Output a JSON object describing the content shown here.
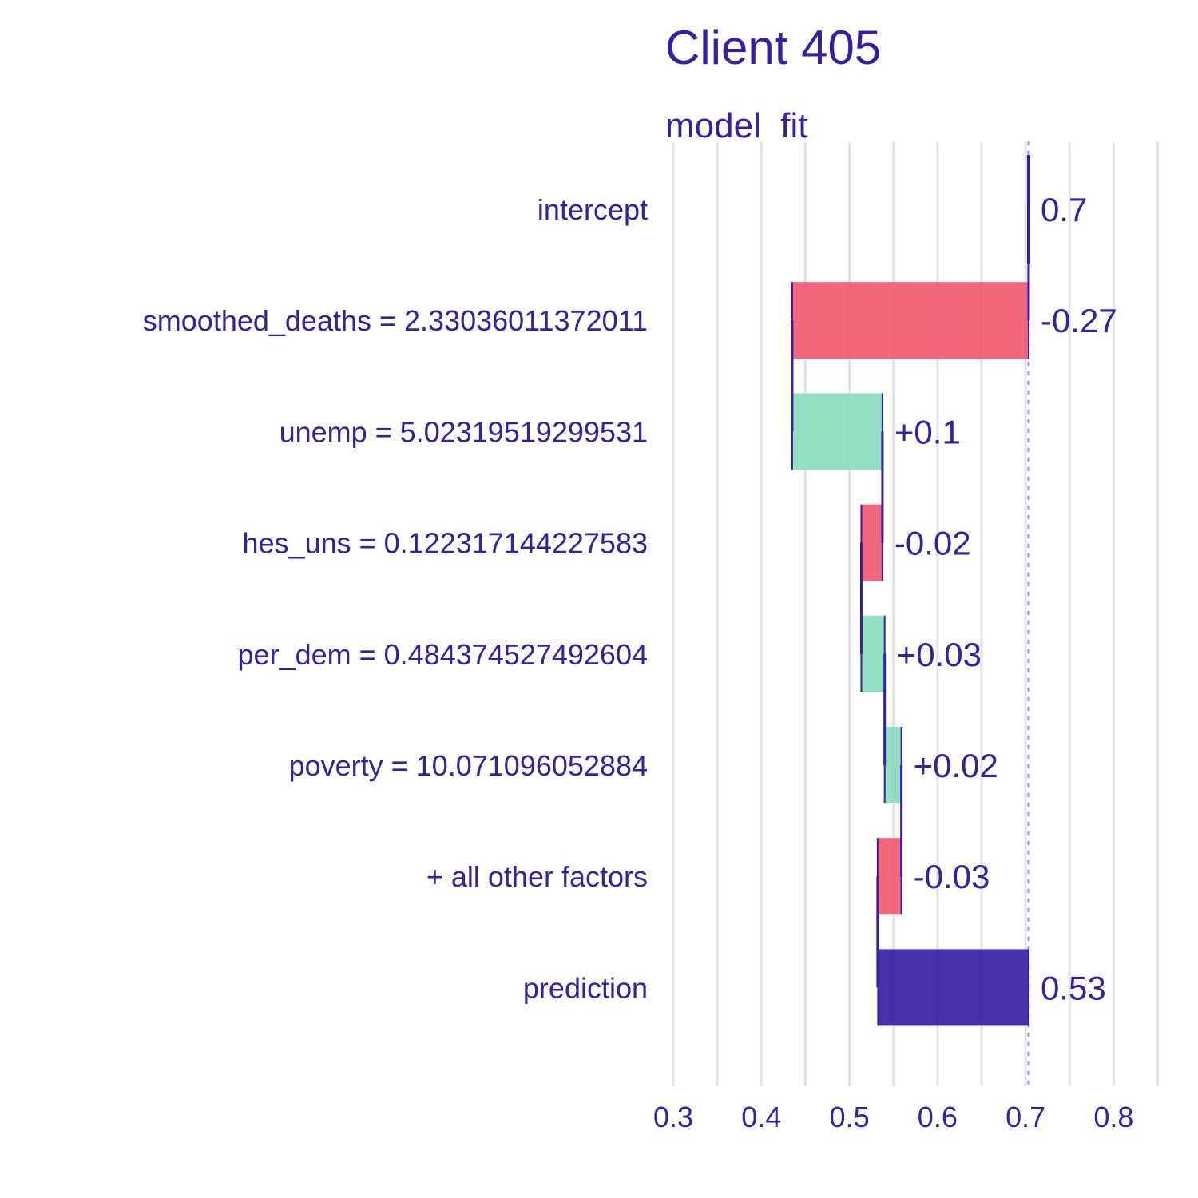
{
  "chart_data": {
    "type": "bar",
    "subtype": "waterfall",
    "title": "Client 405",
    "subtitle": "model  fit",
    "xlim": [
      0.28,
      0.855
    ],
    "x_ticks": [
      0.3,
      0.4,
      0.5,
      0.6,
      0.7,
      0.8
    ],
    "x_tick_labels": [
      "0.3",
      "0.4",
      "0.5",
      "0.6",
      "0.7",
      "0.8"
    ],
    "x_gridlines": [
      0.3,
      0.35,
      0.4,
      0.45,
      0.5,
      0.55,
      0.6,
      0.65,
      0.7,
      0.75,
      0.8,
      0.85
    ],
    "grid": true,
    "baseline": 0.7035,
    "categories": [
      "intercept",
      "smoothed_deaths = 2.33036011372011",
      "unemp = 5.02319519299531",
      "hes_uns = 0.122317144227583",
      "per_dem = 0.484374527492604",
      "poverty = 10.071096052884",
      "+ all other factors",
      "prediction"
    ],
    "contributions": [
      0.7035,
      -0.2685,
      0.1025,
      -0.024,
      0.0265,
      0.019,
      -0.027,
      0.5325
    ],
    "value_labels": [
      "0.7",
      "-0.27",
      "+0.1",
      "-0.02",
      "+0.03",
      "+0.02",
      "-0.03",
      "0.53"
    ],
    "kinds": [
      "intercept",
      "negative",
      "positive",
      "negative",
      "positive",
      "positive",
      "negative",
      "prediction"
    ],
    "colors": {
      "positive": "#8bdcbe",
      "negative": "#f05a71",
      "prediction": "#371EA3",
      "text": "#371EA3",
      "grid": "#e3e3e3",
      "baseline": "#a395e6"
    }
  }
}
